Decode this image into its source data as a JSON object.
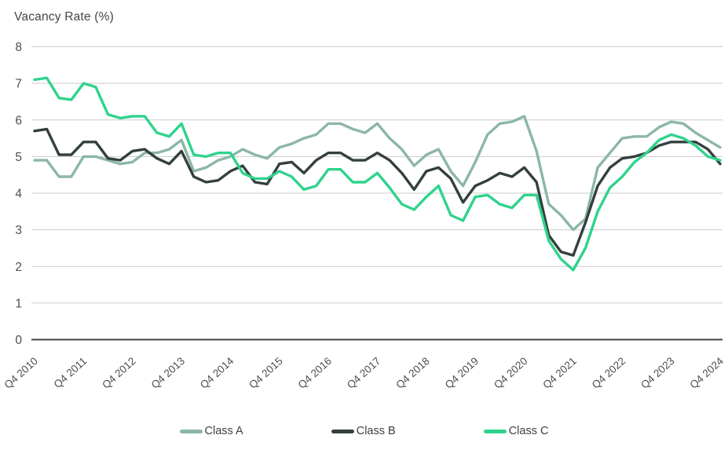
{
  "title": "Vacancy Rate (%)",
  "chart_data": {
    "type": "line",
    "title": "Vacancy Rate (%)",
    "ylabel": "Vacancy Rate (%)",
    "xlabel": "",
    "ylim": [
      0,
      8
    ],
    "y_ticks": [
      0,
      1,
      2,
      3,
      4,
      5,
      6,
      7,
      8
    ],
    "grid": "horizontal",
    "legend_position": "bottom",
    "x_label_step": 4,
    "x_tick_labels": [
      "Q4 2010",
      "Q4 2011",
      "Q4 2012",
      "Q4 2013",
      "Q4 2014",
      "Q4 2015",
      "Q4 2016",
      "Q4 2017",
      "Q4 2018",
      "Q4 2019",
      "Q4 2020",
      "Q4 2021",
      "Q4 2022",
      "Q4 2023",
      "Q4 2024"
    ],
    "categories": [
      "Q4 2010",
      "Q1 2011",
      "Q2 2011",
      "Q3 2011",
      "Q4 2011",
      "Q1 2012",
      "Q2 2012",
      "Q3 2012",
      "Q4 2012",
      "Q1 2013",
      "Q2 2013",
      "Q3 2013",
      "Q4 2013",
      "Q1 2014",
      "Q2 2014",
      "Q3 2014",
      "Q4 2014",
      "Q1 2015",
      "Q2 2015",
      "Q3 2015",
      "Q4 2015",
      "Q1 2016",
      "Q2 2016",
      "Q3 2016",
      "Q4 2016",
      "Q1 2017",
      "Q2 2017",
      "Q3 2017",
      "Q4 2017",
      "Q1 2018",
      "Q2 2018",
      "Q3 2018",
      "Q4 2018",
      "Q1 2019",
      "Q2 2019",
      "Q3 2019",
      "Q4 2019",
      "Q1 2020",
      "Q2 2020",
      "Q3 2020",
      "Q4 2020",
      "Q1 2021",
      "Q2 2021",
      "Q3 2021",
      "Q4 2021",
      "Q1 2022",
      "Q2 2022",
      "Q3 2022",
      "Q4 2022",
      "Q1 2023",
      "Q2 2023",
      "Q3 2023",
      "Q4 2023",
      "Q1 2024",
      "Q2 2024",
      "Q3 2024",
      "Q4 2024"
    ],
    "series": [
      {
        "name": "Class A",
        "color": "#8cb7a5",
        "values": [
          4.9,
          4.9,
          4.45,
          4.45,
          5.0,
          5.0,
          4.9,
          4.8,
          4.85,
          5.1,
          5.1,
          5.2,
          5.45,
          4.6,
          4.7,
          4.9,
          5.0,
          5.2,
          5.05,
          4.95,
          5.25,
          5.35,
          5.5,
          5.6,
          5.9,
          5.9,
          5.75,
          5.65,
          5.9,
          5.5,
          5.2,
          4.75,
          5.05,
          5.2,
          4.6,
          4.2,
          4.85,
          5.6,
          5.9,
          5.95,
          6.1,
          5.15,
          3.7,
          3.4,
          3.0,
          3.3,
          4.7,
          5.1,
          5.5,
          5.55,
          5.55,
          5.8,
          5.95,
          5.9,
          5.65,
          5.45,
          5.25
        ]
      },
      {
        "name": "Class B",
        "color": "#343f3f",
        "values": [
          5.7,
          5.75,
          5.05,
          5.05,
          5.4,
          5.4,
          4.95,
          4.9,
          5.15,
          5.2,
          4.95,
          4.8,
          5.15,
          4.45,
          4.3,
          4.35,
          4.6,
          4.75,
          4.3,
          4.25,
          4.8,
          4.85,
          4.55,
          4.9,
          5.1,
          5.1,
          4.9,
          4.9,
          5.1,
          4.9,
          4.55,
          4.1,
          4.6,
          4.7,
          4.4,
          3.75,
          4.2,
          4.35,
          4.55,
          4.45,
          4.7,
          4.3,
          2.85,
          2.4,
          2.3,
          3.2,
          4.2,
          4.7,
          4.95,
          5.0,
          5.1,
          5.3,
          5.4,
          5.4,
          5.4,
          5.2,
          4.8
        ]
      },
      {
        "name": "Class C",
        "color": "#2fd38c",
        "values": [
          7.1,
          7.15,
          6.6,
          6.55,
          7.0,
          6.9,
          6.15,
          6.05,
          6.1,
          6.1,
          5.65,
          5.55,
          5.9,
          5.05,
          5.0,
          5.1,
          5.1,
          4.55,
          4.4,
          4.4,
          4.6,
          4.45,
          4.1,
          4.2,
          4.65,
          4.65,
          4.3,
          4.3,
          4.55,
          4.15,
          3.7,
          3.55,
          3.9,
          4.2,
          3.4,
          3.25,
          3.9,
          3.95,
          3.7,
          3.6,
          3.95,
          3.95,
          2.7,
          2.2,
          1.9,
          2.5,
          3.5,
          4.15,
          4.45,
          4.85,
          5.1,
          5.45,
          5.6,
          5.5,
          5.3,
          5.0,
          4.9
        ]
      }
    ],
    "colors": {
      "gridline": "#cccccc",
      "axis_line": "#3c4443",
      "tick_text": "#4b504e",
      "title_text": "#404745",
      "legend_text": "#3c4240",
      "background": "#ffffff"
    }
  }
}
